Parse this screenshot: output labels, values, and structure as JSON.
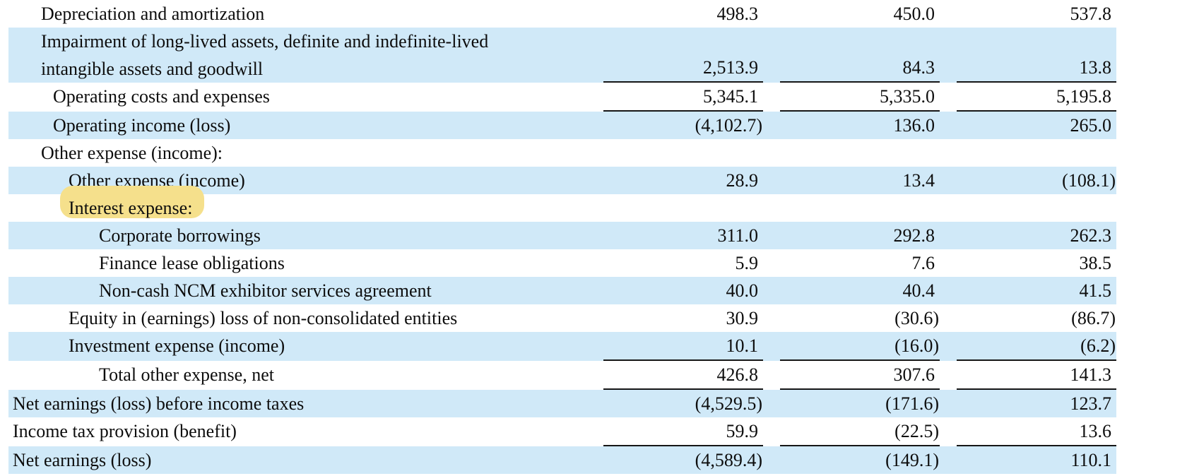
{
  "table": {
    "description": "income-statement-fragment",
    "colors": {
      "row_shade": "#d0e9f8",
      "highlight": "#f5e08c",
      "rule": "#161616",
      "text": "#0d0d0d"
    },
    "rows": [
      {
        "label": "Depreciation and amortization",
        "indent": 1,
        "shaded": false,
        "highlighted": false,
        "two_line": false,
        "underline": false,
        "values": [
          "498.3",
          "450.0",
          "537.8"
        ]
      },
      {
        "label": "Impairment of long-lived assets, definite and indefinite-lived\nintangible assets and goodwill",
        "indent": 1,
        "shaded": true,
        "highlighted": false,
        "two_line": true,
        "underline": true,
        "values": [
          "2,513.9",
          "84.3",
          "13.8"
        ]
      },
      {
        "label": "Operating costs and expenses",
        "indent": 2,
        "shaded": false,
        "highlighted": false,
        "two_line": false,
        "underline": true,
        "values": [
          "5,345.1",
          "5,335.0",
          "5,195.8"
        ]
      },
      {
        "label": "Operating income (loss)",
        "indent": 2,
        "shaded": true,
        "highlighted": false,
        "two_line": false,
        "underline": false,
        "values": [
          "(4,102.7)",
          "136.0",
          "265.0"
        ]
      },
      {
        "label": "Other expense (income):",
        "indent": 1,
        "shaded": false,
        "highlighted": false,
        "two_line": false,
        "underline": false,
        "values": [
          "",
          "",
          ""
        ]
      },
      {
        "label": "Other expense (income)",
        "indent": 3,
        "shaded": true,
        "highlighted": false,
        "two_line": false,
        "underline": false,
        "values": [
          "28.9",
          "13.4",
          "(108.1)"
        ]
      },
      {
        "label": "Interest expense:",
        "indent": 3,
        "shaded": false,
        "highlighted": true,
        "two_line": false,
        "underline": false,
        "values": [
          "",
          "",
          ""
        ]
      },
      {
        "label": "Corporate borrowings",
        "indent": 4,
        "shaded": true,
        "highlighted": false,
        "two_line": false,
        "underline": false,
        "values": [
          "311.0",
          "292.8",
          "262.3"
        ]
      },
      {
        "label": "Finance lease obligations",
        "indent": 4,
        "shaded": false,
        "highlighted": false,
        "two_line": false,
        "underline": false,
        "values": [
          "5.9",
          "7.6",
          "38.5"
        ]
      },
      {
        "label": "Non-cash NCM exhibitor services agreement",
        "indent": 4,
        "shaded": true,
        "highlighted": false,
        "two_line": false,
        "underline": false,
        "values": [
          "40.0",
          "40.4",
          "41.5"
        ]
      },
      {
        "label": "Equity in (earnings) loss of non-consolidated entities",
        "indent": 3,
        "shaded": false,
        "highlighted": false,
        "two_line": false,
        "underline": false,
        "values": [
          "30.9",
          "(30.6)",
          "(86.7)"
        ]
      },
      {
        "label": "Investment expense (income)",
        "indent": 3,
        "shaded": true,
        "highlighted": false,
        "two_line": false,
        "underline": true,
        "values": [
          "10.1",
          "(16.0)",
          "(6.2)"
        ]
      },
      {
        "label": "Total other expense, net",
        "indent": 4,
        "shaded": false,
        "highlighted": false,
        "two_line": false,
        "underline": true,
        "values": [
          "426.8",
          "307.6",
          "141.3"
        ]
      },
      {
        "label": "Net earnings (loss) before income taxes",
        "indent": 0,
        "shaded": true,
        "highlighted": false,
        "two_line": false,
        "underline": false,
        "values": [
          "(4,529.5)",
          "(171.6)",
          "123.7"
        ]
      },
      {
        "label": "Income tax provision (benefit)",
        "indent": 0,
        "shaded": false,
        "highlighted": false,
        "two_line": false,
        "underline": true,
        "values": [
          "59.9",
          "(22.5)",
          "13.6"
        ]
      },
      {
        "label": "Net earnings (loss)",
        "indent": 0,
        "shaded": true,
        "highlighted": false,
        "two_line": false,
        "underline": false,
        "values": [
          "(4,589.4)",
          "(149.1)",
          "110.1"
        ]
      }
    ]
  }
}
